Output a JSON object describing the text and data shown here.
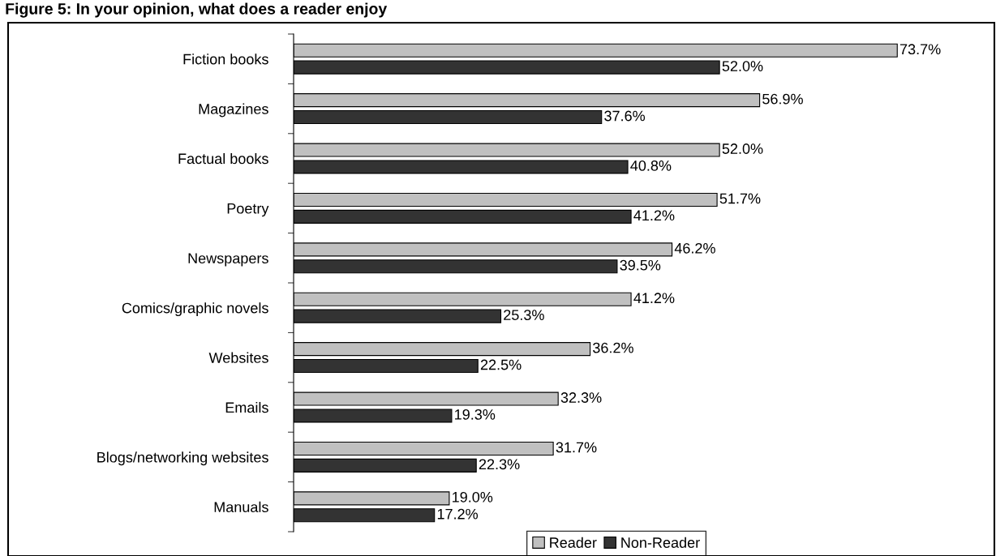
{
  "chart_data": {
    "type": "bar",
    "orientation": "horizontal",
    "title": "Figure 5: In your opinion, what does a reader enjoy",
    "categories": [
      "Fiction books",
      "Magazines",
      "Factual books",
      "Poetry",
      "Newspapers",
      "Comics/graphic novels",
      "Websites",
      "Emails",
      "Blogs/networking websites",
      "Manuals"
    ],
    "series": [
      {
        "name": "Reader",
        "color": "#c0c0c0",
        "values": [
          73.7,
          56.9,
          52.0,
          51.7,
          46.2,
          41.2,
          36.2,
          32.3,
          31.7,
          19.0
        ],
        "value_labels": [
          "73.7%",
          "56.9%",
          "52.0%",
          "51.7%",
          "46.2%",
          "41.2%",
          "36.2%",
          "32.3%",
          "31.7%",
          "19.0%"
        ]
      },
      {
        "name": "Non-Reader",
        "color": "#333333",
        "values": [
          52.0,
          37.6,
          40.8,
          41.2,
          39.5,
          25.3,
          22.5,
          19.3,
          22.3,
          17.2
        ],
        "value_labels": [
          "52.0%",
          "37.6%",
          "40.8%",
          "41.2%",
          "39.5%",
          "25.3%",
          "22.5%",
          "19.3%",
          "22.3%",
          "17.2%"
        ]
      }
    ],
    "legend": "bottom",
    "grid": false
  }
}
